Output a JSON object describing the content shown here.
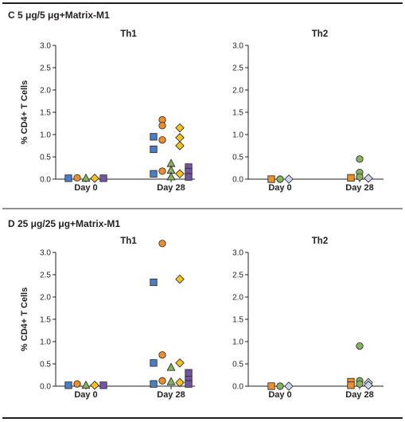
{
  "colors": {
    "square": "#4a7ec7",
    "circle": "#ea8f2c",
    "triangle": "#86b35f",
    "diamond": "#f4c11e",
    "purple_square": "#7356a1",
    "pale_diamond": "#c9d6e8",
    "frame": "#231f20"
  },
  "chart_data": [
    {
      "type": "scatter",
      "section_title": "C  5 μg/5 μg+Matrix-M1",
      "title": "Th1",
      "ylabel": "% CD4+ T Cells",
      "categories": [
        "Day 0",
        "Day 28"
      ],
      "y_ticks": [
        "0.0",
        "0.5",
        "1.0",
        "1.5",
        "2.0",
        "2.5",
        "3.0"
      ],
      "ylim": [
        0,
        3.0
      ],
      "series": [
        {
          "marker": "square",
          "color": "#4a7ec7",
          "points": [
            {
              "x": "Day 0",
              "y": 0.02
            },
            {
              "x": "Day 28",
              "y": 0.95
            },
            {
              "x": "Day 28",
              "y": 0.67
            },
            {
              "x": "Day 28",
              "y": 0.12
            }
          ]
        },
        {
          "marker": "circle",
          "color": "#ea8f2c",
          "points": [
            {
              "x": "Day 0",
              "y": 0.03
            },
            {
              "x": "Day 28",
              "y": 1.33
            },
            {
              "x": "Day 28",
              "y": 1.2
            },
            {
              "x": "Day 28",
              "y": 0.88
            },
            {
              "x": "Day 28",
              "y": 0.18
            }
          ]
        },
        {
          "marker": "triangle",
          "color": "#86b35f",
          "points": [
            {
              "x": "Day 0",
              "y": 0.02
            },
            {
              "x": "Day 28",
              "y": 0.35
            },
            {
              "x": "Day 28",
              "y": 0.2
            },
            {
              "x": "Day 28",
              "y": 0.05
            }
          ]
        },
        {
          "marker": "diamond",
          "color": "#f4c11e",
          "points": [
            {
              "x": "Day 0",
              "y": 0.02
            },
            {
              "x": "Day 28",
              "y": 1.15
            },
            {
              "x": "Day 28",
              "y": 0.93
            },
            {
              "x": "Day 28",
              "y": 0.75
            },
            {
              "x": "Day 28",
              "y": 0.12
            }
          ]
        },
        {
          "marker": "square",
          "color": "#7356a1",
          "points": [
            {
              "x": "Day 0",
              "y": 0.02
            },
            {
              "x": "Day 28",
              "y": 0.27
            },
            {
              "x": "Day 28",
              "y": 0.17
            },
            {
              "x": "Day 28",
              "y": 0.05
            }
          ]
        }
      ]
    },
    {
      "type": "scatter",
      "title": "Th2",
      "categories": [
        "Day 0",
        "Day 28"
      ],
      "y_ticks": [
        "0.0",
        "0.5",
        "1.0",
        "1.5",
        "2.0",
        "2.5",
        "3.0"
      ],
      "ylim": [
        0,
        3.0
      ],
      "series": [
        {
          "marker": "square",
          "color": "#ea8f2c",
          "points": [
            {
              "x": "Day 0",
              "y": 0.0
            },
            {
              "x": "Day 28",
              "y": 0.03
            }
          ]
        },
        {
          "marker": "circle",
          "color": "#86b35f",
          "points": [
            {
              "x": "Day 0",
              "y": 0.0
            },
            {
              "x": "Day 28",
              "y": 0.45
            },
            {
              "x": "Day 28",
              "y": 0.15
            },
            {
              "x": "Day 28",
              "y": 0.05
            }
          ]
        },
        {
          "marker": "diamond",
          "color": "#c9d6e8",
          "points": [
            {
              "x": "Day 0",
              "y": 0.0
            },
            {
              "x": "Day 28",
              "y": 0.02
            }
          ]
        }
      ]
    },
    {
      "type": "scatter",
      "section_title": "D  25 μg/25 μg+Matrix-M1",
      "title": "Th1",
      "ylabel": "% CD4+ T Cells",
      "categories": [
        "Day 0",
        "Day 28"
      ],
      "y_ticks": [
        "0.0",
        "0.5",
        "1.0",
        "1.5",
        "2.0",
        "2.5",
        "3.0"
      ],
      "ylim": [
        0,
        3.0
      ],
      "series": [
        {
          "marker": "square",
          "color": "#4a7ec7",
          "points": [
            {
              "x": "Day 0",
              "y": 0.02
            },
            {
              "x": "Day 28",
              "y": 2.33
            },
            {
              "x": "Day 28",
              "y": 0.52
            },
            {
              "x": "Day 28",
              "y": 0.05
            }
          ]
        },
        {
          "marker": "circle",
          "color": "#ea8f2c",
          "points": [
            {
              "x": "Day 0",
              "y": 0.05
            },
            {
              "x": "Day 28",
              "y": 3.2
            },
            {
              "x": "Day 28",
              "y": 0.7
            },
            {
              "x": "Day 28",
              "y": 0.12
            }
          ]
        },
        {
          "marker": "triangle",
          "color": "#86b35f",
          "points": [
            {
              "x": "Day 0",
              "y": 0.02
            },
            {
              "x": "Day 28",
              "y": 0.42
            },
            {
              "x": "Day 28",
              "y": 0.1
            }
          ]
        },
        {
          "marker": "diamond",
          "color": "#f4c11e",
          "points": [
            {
              "x": "Day 0",
              "y": 0.02
            },
            {
              "x": "Day 28",
              "y": 2.4
            },
            {
              "x": "Day 28",
              "y": 0.52
            },
            {
              "x": "Day 28",
              "y": 0.08
            }
          ]
        },
        {
          "marker": "square",
          "color": "#7356a1",
          "points": [
            {
              "x": "Day 0",
              "y": 0.02
            },
            {
              "x": "Day 28",
              "y": 0.3
            },
            {
              "x": "Day 28",
              "y": 0.15
            },
            {
              "x": "Day 28",
              "y": 0.05
            }
          ]
        }
      ]
    },
    {
      "type": "scatter",
      "title": "Th2",
      "categories": [
        "Day 0",
        "Day 28"
      ],
      "y_ticks": [
        "0.0",
        "0.5",
        "1.0",
        "1.5",
        "2.0",
        "2.5",
        "3.0"
      ],
      "ylim": [
        0,
        3.0
      ],
      "series": [
        {
          "marker": "square",
          "color": "#ea8f2c",
          "points": [
            {
              "x": "Day 0",
              "y": 0.0
            },
            {
              "x": "Day 28",
              "y": 0.1
            },
            {
              "x": "Day 28",
              "y": 0.02
            }
          ]
        },
        {
          "marker": "circle",
          "color": "#86b35f",
          "points": [
            {
              "x": "Day 0",
              "y": 0.0
            },
            {
              "x": "Day 28",
              "y": 0.9
            },
            {
              "x": "Day 28",
              "y": 0.12
            },
            {
              "x": "Day 28",
              "y": 0.05
            }
          ]
        },
        {
          "marker": "diamond",
          "color": "#c9d6e8",
          "points": [
            {
              "x": "Day 0",
              "y": 0.0
            },
            {
              "x": "Day 28",
              "y": 0.08
            },
            {
              "x": "Day 28",
              "y": 0.02
            }
          ]
        }
      ]
    }
  ]
}
